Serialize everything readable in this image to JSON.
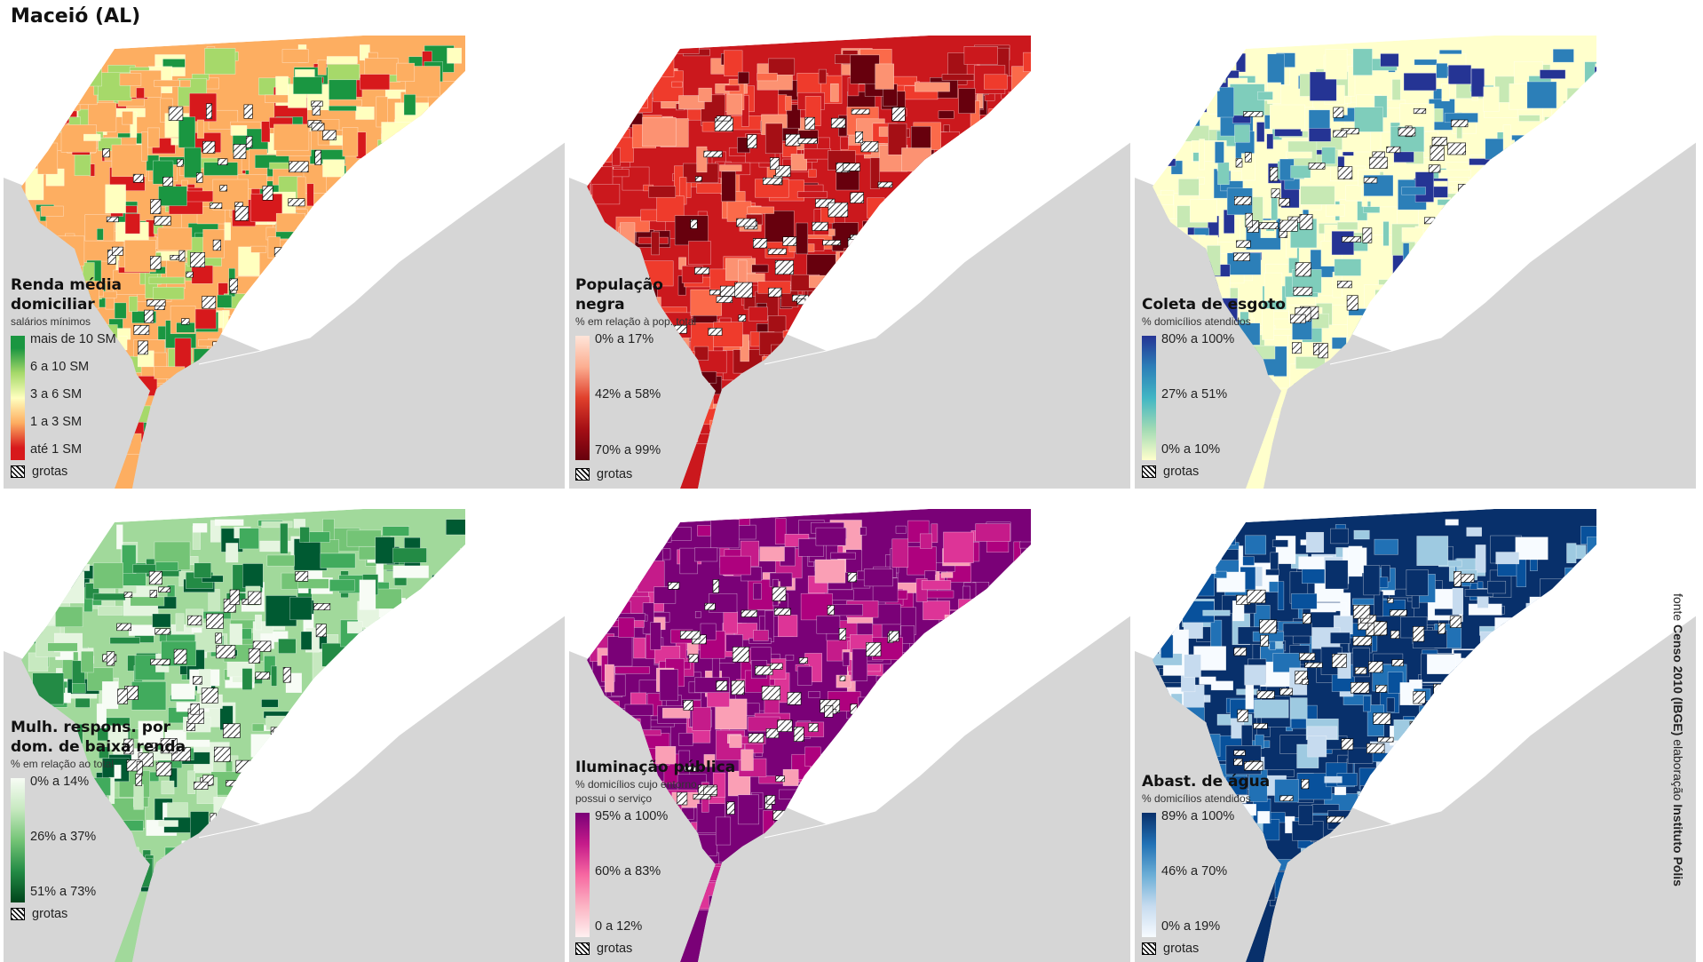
{
  "title": "Maceió (AL)",
  "credit": {
    "source_prefix": "fonte",
    "source_name": "Censo 2010 (IBGE)",
    "author_prefix": "elaboração",
    "author_name": "Instituto Pólis"
  },
  "colors": {
    "sea": "#d6d6d6",
    "land_bg": "#ffffff",
    "boundary": "#ffffff"
  },
  "maps": [
    {
      "id": "renda",
      "title_lines": [
        "Renda média",
        "domiciliar"
      ],
      "subtitle_lines": [
        "salários mínimos"
      ],
      "legend_type": "classes",
      "classes": [
        {
          "label": "mais de 10 SM",
          "color": "#1a9641"
        },
        {
          "label": "6 a 10 SM",
          "color": "#a6d96a"
        },
        {
          "label": "3 a 6 SM",
          "color": "#ffffbf"
        },
        {
          "label": "1 a 3 SM",
          "color": "#fdae61"
        },
        {
          "label": "até 1 SM",
          "color": "#d7191c"
        }
      ],
      "grotas_label": "grotas",
      "palette": [
        "#fdae61",
        "#fdae61",
        "#a6d96a",
        "#ffffbf",
        "#1a9641",
        "#fdae61",
        "#d7191c"
      ],
      "base_color": "#fdae61"
    },
    {
      "id": "populacao",
      "title_lines": [
        "População",
        "negra"
      ],
      "subtitle_lines": [
        "% em relação à pop. total"
      ],
      "legend_type": "gradient",
      "stops": [
        {
          "label": "0% a 17%",
          "color": "#fee5d9"
        },
        {
          "label": "42% a 58%",
          "color": "#e0402c"
        },
        {
          "label": "70% a 99%",
          "color": "#67000d"
        }
      ],
      "grotas_label": "grotas",
      "palette": [
        "#cb181d",
        "#ef3b2c",
        "#a50f15",
        "#fb6a4a",
        "#67000d",
        "#fc9272"
      ],
      "base_color": "#cb181d"
    },
    {
      "id": "esgoto",
      "title_lines": [
        "Coleta de esgoto"
      ],
      "subtitle_lines": [
        "% domicílios atendidos"
      ],
      "legend_type": "gradient",
      "stops": [
        {
          "label": "80% a 100%",
          "color": "#253494"
        },
        {
          "label": "27% a 51%",
          "color": "#41b6c4"
        },
        {
          "label": "0% a 10%",
          "color": "#ffffcc"
        }
      ],
      "grotas_label": "grotas",
      "palette": [
        "#ffffcc",
        "#ffffcc",
        "#c7e9b4",
        "#7fcdbb",
        "#253494",
        "#ffffcc",
        "#2c7fb8"
      ],
      "base_color": "#ffffcc"
    },
    {
      "id": "mulheres",
      "title_lines": [
        "Mulh. respons. por",
        "dom. de baixa renda"
      ],
      "subtitle_lines": [
        "% em relação ao total"
      ],
      "legend_type": "gradient",
      "stops": [
        {
          "label": "0% a 14%",
          "color": "#f7fcf5"
        },
        {
          "label": "26% a 37%",
          "color": "#74c476"
        },
        {
          "label": "51% a 73%",
          "color": "#00441b"
        }
      ],
      "grotas_label": "grotas",
      "palette": [
        "#c7e9c0",
        "#74c476",
        "#e5f5e0",
        "#238b45",
        "#f7fcf5",
        "#41ab5d",
        "#005a32"
      ],
      "base_color": "#a1d99b"
    },
    {
      "id": "iluminacao",
      "title_lines": [
        "Iluminação pública"
      ],
      "subtitle_lines": [
        "% domicílios cujo entorno",
        "possui o serviço"
      ],
      "legend_type": "gradient",
      "stops": [
        {
          "label": "95% a 100%",
          "color": "#7a0177"
        },
        {
          "label": "60% a 83%",
          "color": "#f768a1"
        },
        {
          "label": "0 a 12%",
          "color": "#fff0f0"
        }
      ],
      "grotas_label": "grotas",
      "palette": [
        "#7a0177",
        "#7a0177",
        "#ae017e",
        "#dd3497",
        "#fa9fb5",
        "#7a0177",
        "#c51b8a"
      ],
      "base_color": "#7a0177"
    },
    {
      "id": "agua",
      "title_lines": [
        "Abast. de água"
      ],
      "subtitle_lines": [
        "% domicílios atendidos"
      ],
      "legend_type": "gradient",
      "stops": [
        {
          "label": "89% a 100%",
          "color": "#08306b"
        },
        {
          "label": "46% a 70%",
          "color": "#4292c6"
        },
        {
          "label": "0% a 19%",
          "color": "#f7fbff"
        }
      ],
      "grotas_label": "grotas",
      "palette": [
        "#08306b",
        "#08519c",
        "#c6dbef",
        "#2171b5",
        "#08306b",
        "#9ecae1",
        "#f7fbff"
      ],
      "base_color": "#08306b"
    }
  ]
}
